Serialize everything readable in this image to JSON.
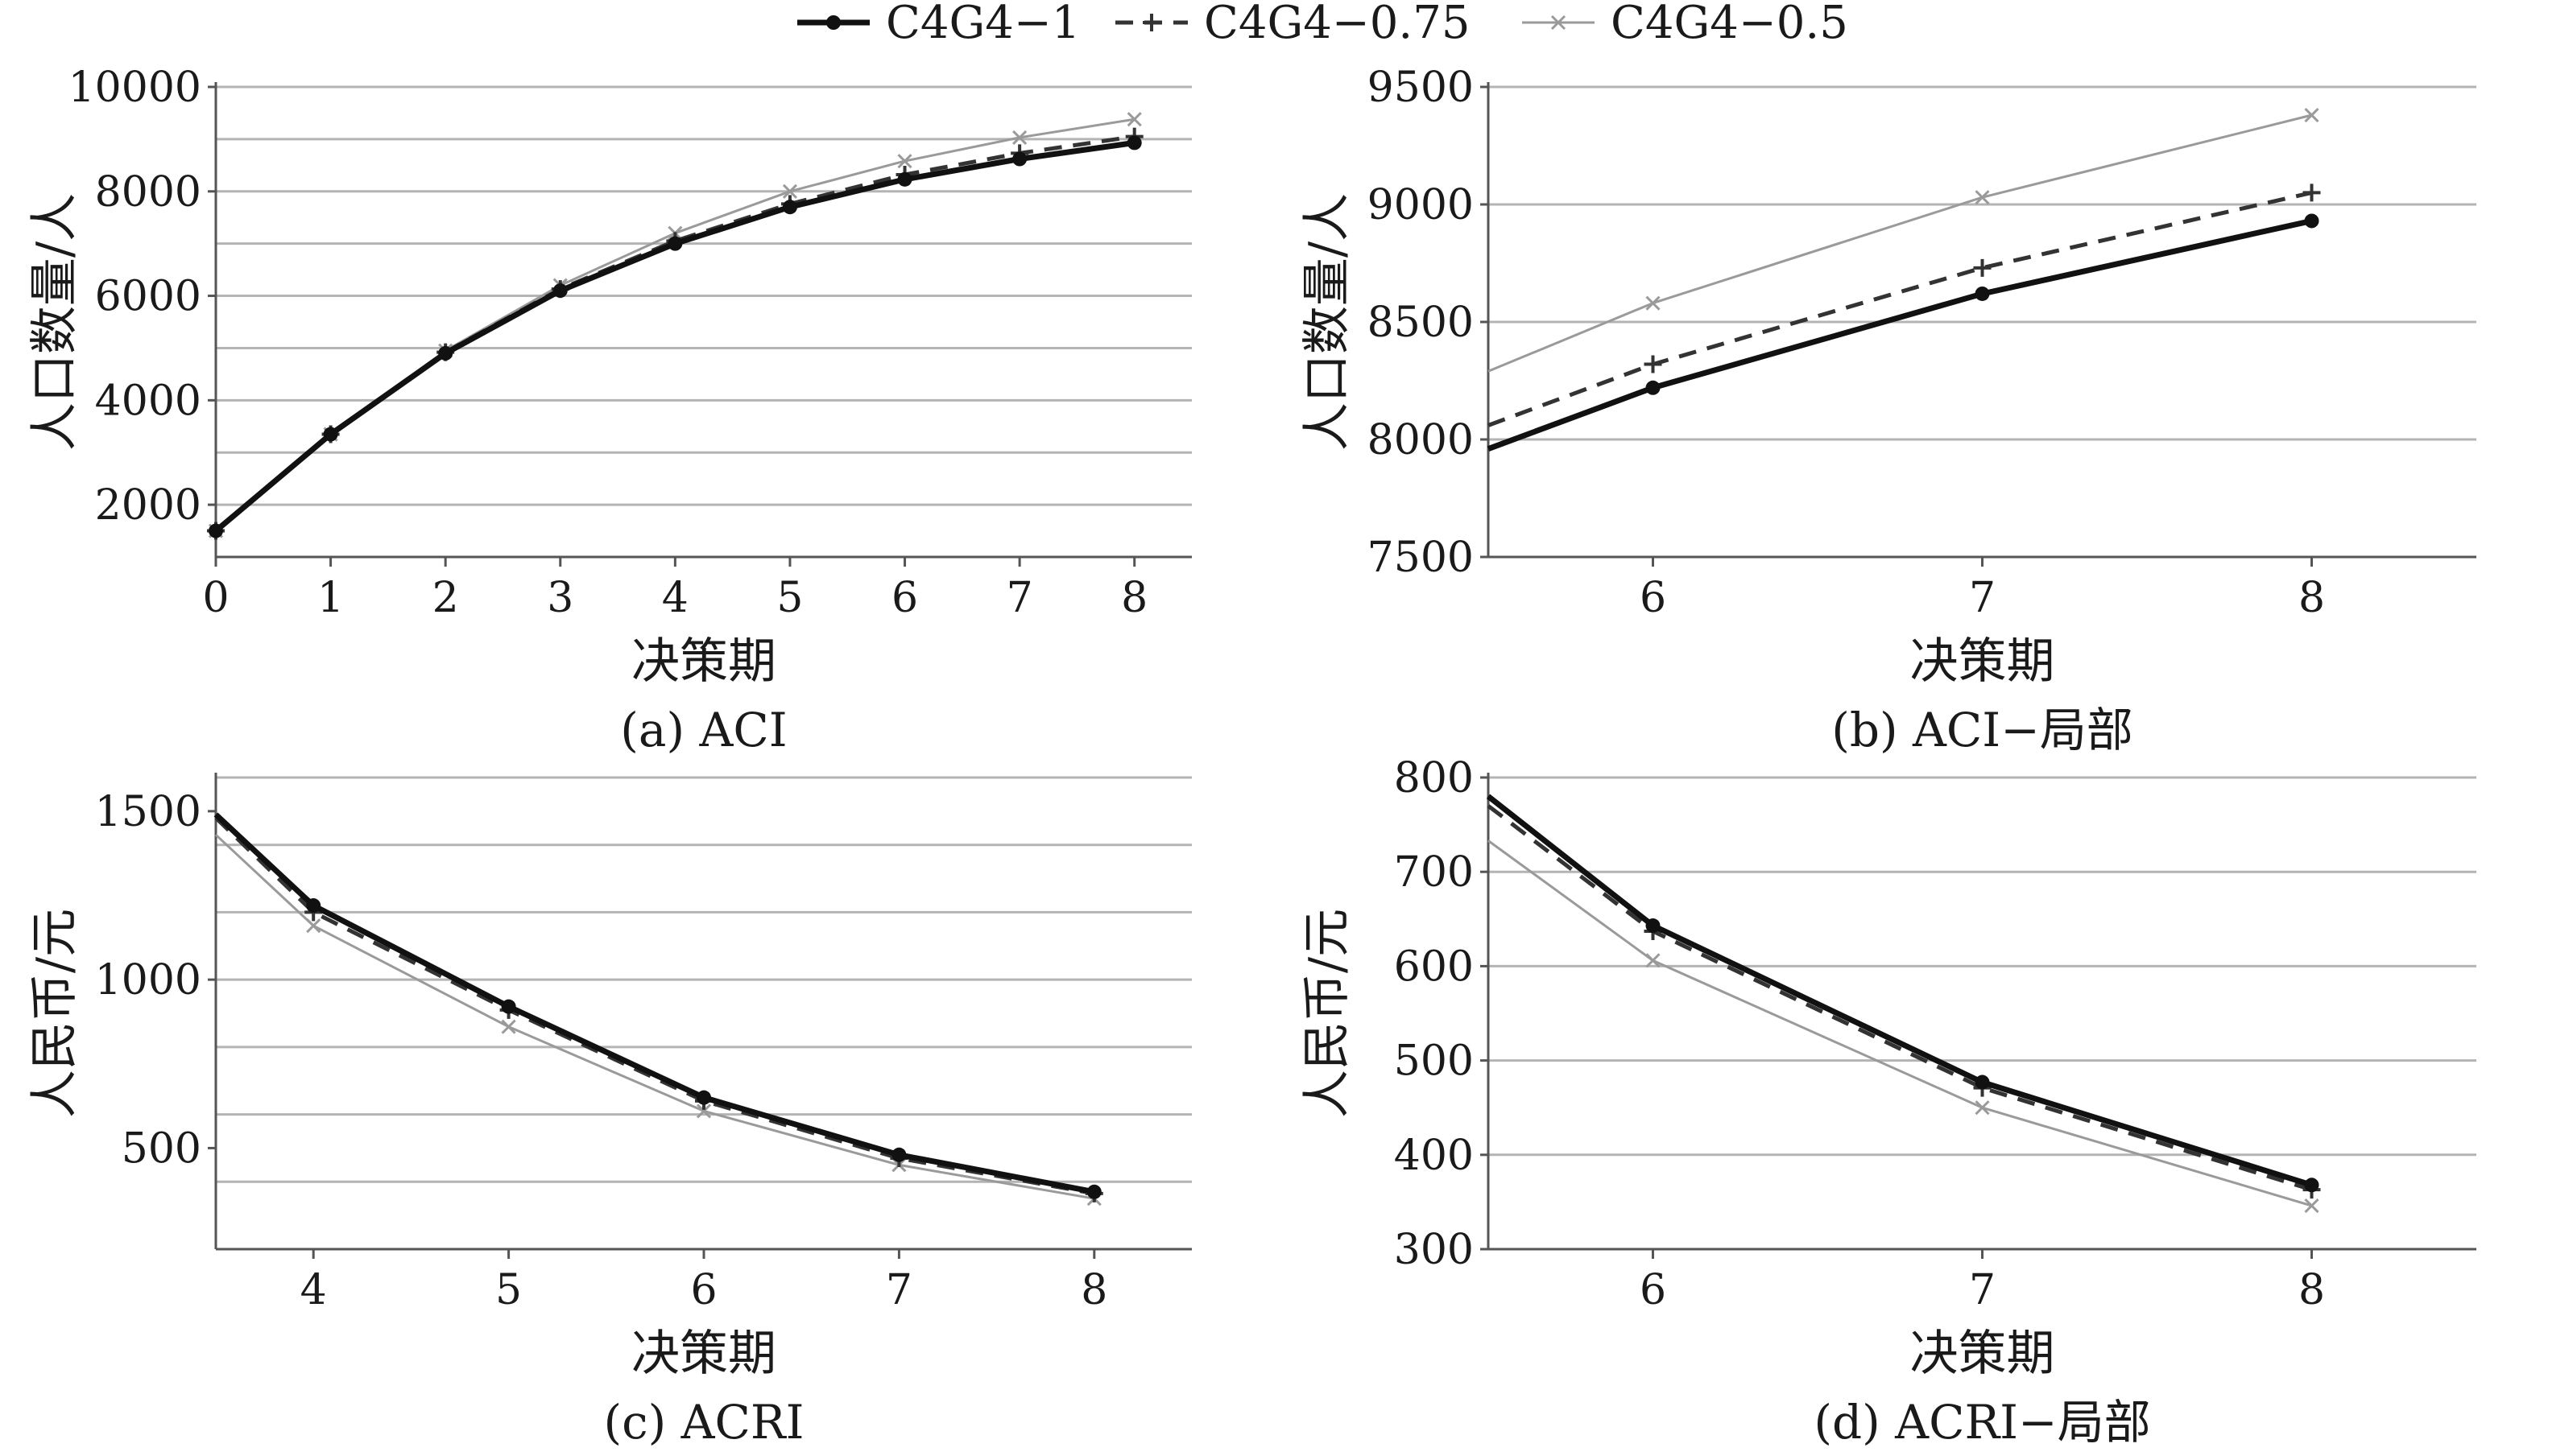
{
  "legend": [
    {
      "name": "C4G4−1",
      "color": "#111111",
      "dash": "",
      "marker": "dot",
      "width": 7
    },
    {
      "name": "C4G4−0.75",
      "color": "#333333",
      "dash": "22,14",
      "marker": "plus",
      "width": 5
    },
    {
      "name": "C4G4−0.5",
      "color": "#9a9a9a",
      "dash": "",
      "marker": "x",
      "width": 3
    }
  ],
  "chart_data": [
    {
      "id": "a",
      "type": "line",
      "caption": "(a) ACI",
      "xlabel": "决策期",
      "ylabel": "人口数量/人",
      "xlim": [
        0,
        8.5
      ],
      "ylim": [
        1000,
        10000
      ],
      "xticks": [
        "0",
        "1",
        "2",
        "3",
        "4",
        "5",
        "6",
        "7",
        "8"
      ],
      "yticks": [
        "2000",
        "4000",
        "6000",
        "8000",
        "10000"
      ],
      "grid_values": [
        2000,
        3000,
        4000,
        5000,
        6000,
        7000,
        8000,
        9000,
        10000
      ],
      "x": [
        0,
        1,
        2,
        3,
        4,
        5,
        6,
        7,
        8
      ],
      "series": [
        {
          "name": "C4G4−1",
          "values": [
            1500,
            3350,
            4900,
            6100,
            7000,
            7700,
            8230,
            8620,
            8930
          ]
        },
        {
          "name": "C4G4−0.75",
          "values": [
            1500,
            3350,
            4920,
            6130,
            7050,
            7760,
            8320,
            8730,
            9050
          ]
        },
        {
          "name": "C4G4−0.5",
          "values": [
            1500,
            3350,
            4950,
            6200,
            7200,
            8000,
            8580,
            9030,
            9380
          ]
        }
      ]
    },
    {
      "id": "b",
      "type": "line",
      "caption": "(b) ACI−局部",
      "xlabel": "决策期",
      "ylabel": "人口数量/人",
      "xlim": [
        5.5,
        8.5
      ],
      "ylim": [
        7500,
        9500
      ],
      "xticks": [
        "6",
        "7",
        "8"
      ],
      "yticks": [
        "7500",
        "8000",
        "8500",
        "9000",
        "9500"
      ],
      "grid_values": [
        8000,
        8500,
        9000,
        9500
      ],
      "x": [
        5.5,
        6,
        7,
        8
      ],
      "series": [
        {
          "name": "C4G4−1",
          "values": [
            7960,
            8220,
            8620,
            8930
          ]
        },
        {
          "name": "C4G4−0.75",
          "values": [
            8060,
            8320,
            8730,
            9050
          ]
        },
        {
          "name": "C4G4−0.5",
          "values": [
            8290,
            8580,
            9030,
            9380
          ]
        }
      ]
    },
    {
      "id": "c",
      "type": "line",
      "caption": "(c) ACRI",
      "xlabel": "决策期",
      "ylabel": "人民币/元",
      "xlim": [
        3.5,
        8.5
      ],
      "ylim": [
        200,
        1600
      ],
      "xticks": [
        "4",
        "5",
        "6",
        "7",
        "8"
      ],
      "yticks": [
        "500",
        "1000",
        "1500"
      ],
      "grid_values": [
        400,
        600,
        800,
        1000,
        1200,
        1400,
        1600
      ],
      "x": [
        3.5,
        4,
        5,
        6,
        7,
        8
      ],
      "series": [
        {
          "name": "C4G4−1",
          "values": [
            1490,
            1220,
            920,
            650,
            480,
            370
          ]
        },
        {
          "name": "C4G4−0.75",
          "values": [
            1480,
            1200,
            910,
            640,
            470,
            365
          ]
        },
        {
          "name": "C4G4−0.5",
          "values": [
            1430,
            1160,
            860,
            610,
            450,
            350
          ]
        }
      ]
    },
    {
      "id": "d",
      "type": "line",
      "caption": "(d) ACRI−局部",
      "xlabel": "决策期",
      "ylabel": "人民币/元",
      "xlim": [
        5.5,
        8.5
      ],
      "ylim": [
        300,
        800
      ],
      "xticks": [
        "6",
        "7",
        "8"
      ],
      "yticks": [
        "300",
        "400",
        "500",
        "600",
        "700",
        "800"
      ],
      "grid_values": [
        400,
        500,
        600,
        700,
        800
      ],
      "x": [
        5.5,
        6,
        7,
        8
      ],
      "series": [
        {
          "name": "C4G4−1",
          "values": [
            780,
            643,
            477,
            368
          ]
        },
        {
          "name": "C4G4−0.75",
          "values": [
            770,
            637,
            471,
            363
          ]
        },
        {
          "name": "C4G4−0.5",
          "values": [
            733,
            606,
            450,
            346
          ]
        }
      ]
    }
  ]
}
